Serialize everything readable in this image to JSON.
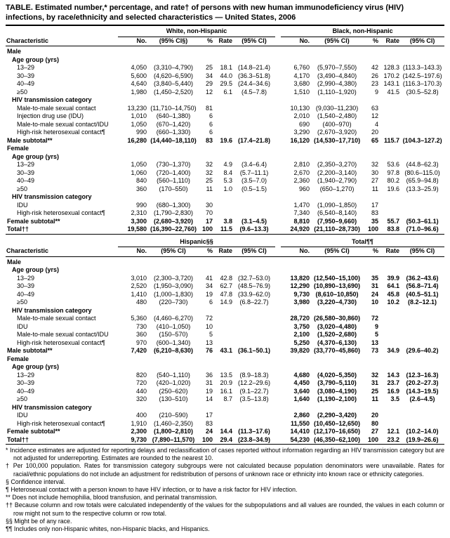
{
  "title": "TABLE. Estimated number,* percentage, and rate† of persons with new human immunodeficiency virus (HIV) infections, by race/ethnicity and selected characteristics — United States, 2006",
  "table": {
    "panels": [
      {
        "characteristic_header": "Characteristic",
        "right_bold": false,
        "groups": [
          {
            "label": "White, non-Hispanic",
            "cols": [
              "No.",
              "(95% CI§)",
              "%",
              "Rate",
              "(95% CI)"
            ]
          },
          {
            "label": "Black, non-Hispanic",
            "cols": [
              "No.",
              "(95% CI)",
              "%",
              "Rate",
              "(95% CI)"
            ]
          }
        ],
        "rows": [
          {
            "label": "Male",
            "indent": 0,
            "bold": true,
            "left": [],
            "right": []
          },
          {
            "label": "Age group (yrs)",
            "indent": 1,
            "bold": true,
            "left": [],
            "right": []
          },
          {
            "label": "13–29",
            "indent": 2,
            "bold": false,
            "left": [
              "4,050",
              "(3,310–4,790)",
              "25",
              "18.1",
              "(14.8–21.4)"
            ],
            "right": [
              "6,760",
              "(5,970–7,550)",
              "42",
              "128.3",
              "(113.3–143.3)"
            ]
          },
          {
            "label": "30–39",
            "indent": 2,
            "bold": false,
            "left": [
              "5,600",
              "(4,620–6,590)",
              "34",
              "44.0",
              "(36.3–51.8)"
            ],
            "right": [
              "4,170",
              "(3,490–4,840)",
              "26",
              "170.2",
              "(142.5–197.6)"
            ]
          },
          {
            "label": "40–49",
            "indent": 2,
            "bold": false,
            "left": [
              "4,640",
              "(3,840–5,440)",
              "29",
              "29.5",
              "(24.4–34.6)"
            ],
            "right": [
              "3,680",
              "(2,990–4,380)",
              "23",
              "143.1",
              "(116.3–170.3)"
            ]
          },
          {
            "label": "≥50",
            "indent": 2,
            "bold": false,
            "left": [
              "1,980",
              "(1,450–2,520)",
              "12",
              "6.1",
              "(4.5–7.8)"
            ],
            "right": [
              "1,510",
              "(1,110–1,920)",
              "9",
              "41.5",
              "(30.5–52.8)"
            ]
          },
          {
            "label": "HIV transmission category",
            "indent": 1,
            "bold": true,
            "left": [],
            "right": []
          },
          {
            "label": "Male-to-male sexual contact",
            "indent": 2,
            "bold": false,
            "left": [
              "13,230",
              "(11,710–14,750)",
              "81",
              "",
              ""
            ],
            "right": [
              "10,130",
              "(9,030–11,230)",
              "63",
              "",
              ""
            ]
          },
          {
            "label": "Injection drug use (IDU)",
            "indent": 2,
            "bold": false,
            "left": [
              "1,010",
              "(640–1,380)",
              "6",
              "",
              ""
            ],
            "right": [
              "2,010",
              "(1,540–2,480)",
              "12",
              "",
              ""
            ]
          },
          {
            "label": "Male-to-male sexual contact/IDU",
            "indent": 2,
            "bold": false,
            "left": [
              "1,050",
              "(670–1,420)",
              "6",
              "",
              ""
            ],
            "right": [
              "690",
              "(400–970)",
              "4",
              "",
              ""
            ]
          },
          {
            "label": "High-risk heterosexual contact¶",
            "indent": 2,
            "bold": false,
            "left": [
              "990",
              "(660–1,330)",
              "6",
              "",
              ""
            ],
            "right": [
              "3,290",
              "(2,670–3,920)",
              "20",
              "",
              ""
            ]
          },
          {
            "label": "Male subtotal**",
            "indent": 0,
            "bold": true,
            "left": [
              "16,280",
              "(14,440–18,110)",
              "83",
              "19.6",
              "(17.4–21.8)"
            ],
            "right": [
              "16,120",
              "(14,530–17,710)",
              "65",
              "115.7",
              "(104.3–127.2)"
            ]
          },
          {
            "label": "Female",
            "indent": 0,
            "bold": true,
            "left": [],
            "right": []
          },
          {
            "label": "Age group (yrs)",
            "indent": 1,
            "bold": true,
            "left": [],
            "right": []
          },
          {
            "label": "13–29",
            "indent": 2,
            "bold": false,
            "left": [
              "1,050",
              "(730–1,370)",
              "32",
              "4.9",
              "(3.4–6.4)"
            ],
            "right": [
              "2,810",
              "(2,350–3,270)",
              "32",
              "53.6",
              "(44.8–62.3)"
            ]
          },
          {
            "label": "30–39",
            "indent": 2,
            "bold": false,
            "left": [
              "1,060",
              "(720–1,400)",
              "32",
              "8.4",
              "(5.7–11.1)"
            ],
            "right": [
              "2,670",
              "(2,200–3,140)",
              "30",
              "97.8",
              "(80.6–115.0)"
            ]
          },
          {
            "label": "40–49",
            "indent": 2,
            "bold": false,
            "left": [
              "840",
              "(560–1,110)",
              "25",
              "5.3",
              "(3.5–7.0)"
            ],
            "right": [
              "2,360",
              "(1,940–2,790)",
              "27",
              "80.2",
              "(65.9–94.8)"
            ]
          },
          {
            "label": "≥50",
            "indent": 2,
            "bold": false,
            "left": [
              "360",
              "(170–550)",
              "11",
              "1.0",
              "(0.5–1.5)"
            ],
            "right": [
              "960",
              "(650–1,270)",
              "11",
              "19.6",
              "(13.3–25.9)"
            ]
          },
          {
            "label": "HIV transmission category",
            "indent": 1,
            "bold": true,
            "left": [],
            "right": []
          },
          {
            "label": "IDU",
            "indent": 2,
            "bold": false,
            "left": [
              "990",
              "(680–1,300)",
              "30",
              "",
              ""
            ],
            "right": [
              "1,470",
              "(1,090–1,850)",
              "17",
              "",
              ""
            ]
          },
          {
            "label": "High-risk heterosexual contact¶",
            "indent": 2,
            "bold": false,
            "left": [
              "2,310",
              "(1,790–2,830)",
              "70",
              "",
              ""
            ],
            "right": [
              "7,340",
              "(6,540–8,140)",
              "83",
              "",
              ""
            ]
          },
          {
            "label": "Female subtotal**",
            "indent": 0,
            "bold": true,
            "left": [
              "3,300",
              "(2,680–3,920)",
              "17",
              "3.8",
              "(3.1–4.5)"
            ],
            "right": [
              "8,810",
              "(7,950–9,660)",
              "35",
              "55.7",
              "(50.3–61.1)"
            ]
          },
          {
            "label": "Total††",
            "indent": 0,
            "bold": true,
            "left": [
              "19,580",
              "(16,390–22,760)",
              "100",
              "11.5",
              "(9.6–13.3)"
            ],
            "right": [
              "24,920",
              "(21,110–28,730)",
              "100",
              "83.8",
              "(71.0–96.6)"
            ]
          }
        ]
      },
      {
        "characteristic_header": "Characteristic",
        "right_bold": true,
        "groups": [
          {
            "label": "Hispanic§§",
            "cols": [
              "No.",
              "(95% CI)",
              "%",
              "Rate",
              "(95% CI)"
            ]
          },
          {
            "label": "Total¶¶",
            "cols": [
              "No.",
              "(95% CI)",
              "%",
              "Rate",
              "(95% CI)"
            ]
          }
        ],
        "rows": [
          {
            "label": "Male",
            "indent": 0,
            "bold": true,
            "left": [],
            "right": []
          },
          {
            "label": "Age group (yrs)",
            "indent": 1,
            "bold": true,
            "left": [],
            "right": []
          },
          {
            "label": "13–29",
            "indent": 2,
            "bold": false,
            "left": [
              "3,010",
              "(2,300–3,720)",
              "41",
              "42.8",
              "(32.7–53.0)"
            ],
            "right": [
              "13,820",
              "(12,540–15,100)",
              "35",
              "39.9",
              "(36.2–43.6)"
            ]
          },
          {
            "label": "30–39",
            "indent": 2,
            "bold": false,
            "left": [
              "2,520",
              "(1,950–3,090)",
              "34",
              "62.7",
              "(48.5–76.9)"
            ],
            "right": [
              "12,290",
              "(10,890–13,690)",
              "31",
              "64.1",
              "(56.8–71.4)"
            ]
          },
          {
            "label": "40–49",
            "indent": 2,
            "bold": false,
            "left": [
              "1,410",
              "(1,000–1,830)",
              "19",
              "47.8",
              "(33.9–62.0)"
            ],
            "right": [
              "9,730",
              "(8,610–10,850)",
              "24",
              "45.8",
              "(40.5–51.1)"
            ]
          },
          {
            "label": "≥50",
            "indent": 2,
            "bold": false,
            "left": [
              "480",
              "(220–730)",
              "6",
              "14.9",
              "(6.8–22.7)"
            ],
            "right": [
              "3,980",
              "(3,220–4,730)",
              "10",
              "10.2",
              "(8.2–12.1)"
            ]
          },
          {
            "label": "HIV transmission category",
            "indent": 1,
            "bold": true,
            "left": [],
            "right": []
          },
          {
            "label": "Male-to-male sexual contact",
            "indent": 2,
            "bold": false,
            "left": [
              "5,360",
              "(4,460–6,270)",
              "72",
              "",
              ""
            ],
            "right": [
              "28,720",
              "(26,580–30,860)",
              "72",
              "",
              ""
            ]
          },
          {
            "label": "IDU",
            "indent": 2,
            "bold": false,
            "left": [
              "730",
              "(410–1,050)",
              "10",
              "",
              ""
            ],
            "right": [
              "3,750",
              "(3,020–4,480)",
              "9",
              "",
              ""
            ]
          },
          {
            "label": "Male-to-male sexual contact/IDU",
            "indent": 2,
            "bold": false,
            "left": [
              "360",
              "(150–570)",
              "5",
              "",
              ""
            ],
            "right": [
              "2,100",
              "(1,520–2,680)",
              "5",
              "",
              ""
            ]
          },
          {
            "label": "High-risk heterosexual contact¶",
            "indent": 2,
            "bold": false,
            "left": [
              "970",
              "(600–1,340)",
              "13",
              "",
              ""
            ],
            "right": [
              "5,250",
              "(4,370–6,130)",
              "13",
              "",
              ""
            ]
          },
          {
            "label": "Male subtotal**",
            "indent": 0,
            "bold": true,
            "left": [
              "7,420",
              "(6,210–8,630)",
              "76",
              "43.1",
              "(36.1–50.1)"
            ],
            "right": [
              "39,820",
              "(33,770–45,860)",
              "73",
              "34.9",
              "(29.6–40.2)"
            ]
          },
          {
            "label": "Female",
            "indent": 0,
            "bold": true,
            "left": [],
            "right": []
          },
          {
            "label": "Age group (yrs)",
            "indent": 1,
            "bold": true,
            "left": [],
            "right": []
          },
          {
            "label": "13–29",
            "indent": 2,
            "bold": false,
            "left": [
              "820",
              "(540–1,110)",
              "36",
              "13.5",
              "(8.9–18.3)"
            ],
            "right": [
              "4,680",
              "(4,020–5,350)",
              "32",
              "14.3",
              "(12.3–16.3)"
            ]
          },
          {
            "label": "30–39",
            "indent": 2,
            "bold": false,
            "left": [
              "720",
              "(420–1,020)",
              "31",
              "20.9",
              "(12.2–29.6)"
            ],
            "right": [
              "4,450",
              "(3,790–5,110)",
              "31",
              "23.7",
              "(20.2–27.3)"
            ]
          },
          {
            "label": "40–49",
            "indent": 2,
            "bold": false,
            "left": [
              "440",
              "(250–620)",
              "19",
              "16.1",
              "(9.1–22.7)"
            ],
            "right": [
              "3,640",
              "(3,080–4,190)",
              "25",
              "16.9",
              "(14.3–19.5)"
            ]
          },
          {
            "label": "≥50",
            "indent": 2,
            "bold": false,
            "left": [
              "320",
              "(130–510)",
              "14",
              "8.7",
              "(3.5–13.8)"
            ],
            "right": [
              "1,640",
              "(1,190–2,100)",
              "11",
              "3.5",
              "(2.6–4.5)"
            ]
          },
          {
            "label": "HIV transmission category",
            "indent": 1,
            "bold": true,
            "left": [],
            "right": []
          },
          {
            "label": "IDU",
            "indent": 2,
            "bold": false,
            "left": [
              "400",
              "(210–590)",
              "17",
              "",
              ""
            ],
            "right": [
              "2,860",
              "(2,290–3,420)",
              "20",
              "",
              ""
            ]
          },
          {
            "label": "High-risk heterosexual contact¶",
            "indent": 2,
            "bold": false,
            "left": [
              "1,910",
              "(1,460–2,350)",
              "83",
              "",
              ""
            ],
            "right": [
              "11,550",
              "(10,450–12,650)",
              "80",
              "",
              ""
            ]
          },
          {
            "label": "Female subtotal**",
            "indent": 0,
            "bold": true,
            "left": [
              "2,300",
              "(1,800–2,810)",
              "24",
              "14.4",
              "(11.3–17.6)"
            ],
            "right": [
              "14,410",
              "(12,170–16,650)",
              "27",
              "12.1",
              "(10.2–14.0)"
            ]
          },
          {
            "label": "Total††",
            "indent": 0,
            "bold": true,
            "left": [
              "9,730",
              "(7,890–11,570)",
              "100",
              "29.4",
              "(23.8–34.9)"
            ],
            "right": [
              "54,230",
              "(46,350–62,100)",
              "100",
              "23.2",
              "(19.9–26.6)"
            ]
          }
        ]
      }
    ]
  },
  "footnotes": [
    {
      "marker": "*",
      "text": "Incidence estimates are adjusted for reporting delays and reclassification of cases reported without information regarding an HIV transmission category but are not adjusted for underreporting. Estimates are rounded to the nearest 10."
    },
    {
      "marker": "†",
      "text": "Per 100,000 population. Rates for transmission category subgroups were not calculated because population denominators were unavailable. Rates for racial/ethnic populations do not include an adjustment for redistribution of persons of unknown race or ethnicity into known race or ethnicity categories."
    },
    {
      "marker": "§",
      "text": "Confidence interval."
    },
    {
      "marker": "¶",
      "text": "Heterosexual contact with a person known to have HIV infection, or to have a risk factor for HIV infection."
    },
    {
      "marker": "**",
      "text": "Does not include hemophilia, blood transfusion, and perinatal transmission."
    },
    {
      "marker": "††",
      "text": "Because column and row totals were calculated independently of the values for the subpopulations and all values are rounded, the values in each column or row might not sum to the respective column or row total."
    },
    {
      "marker": "§§",
      "text": "Might be of any race."
    },
    {
      "marker": "¶¶",
      "text": "Includes only non-Hispanic whites, non-Hispanic blacks, and Hispanics."
    }
  ]
}
